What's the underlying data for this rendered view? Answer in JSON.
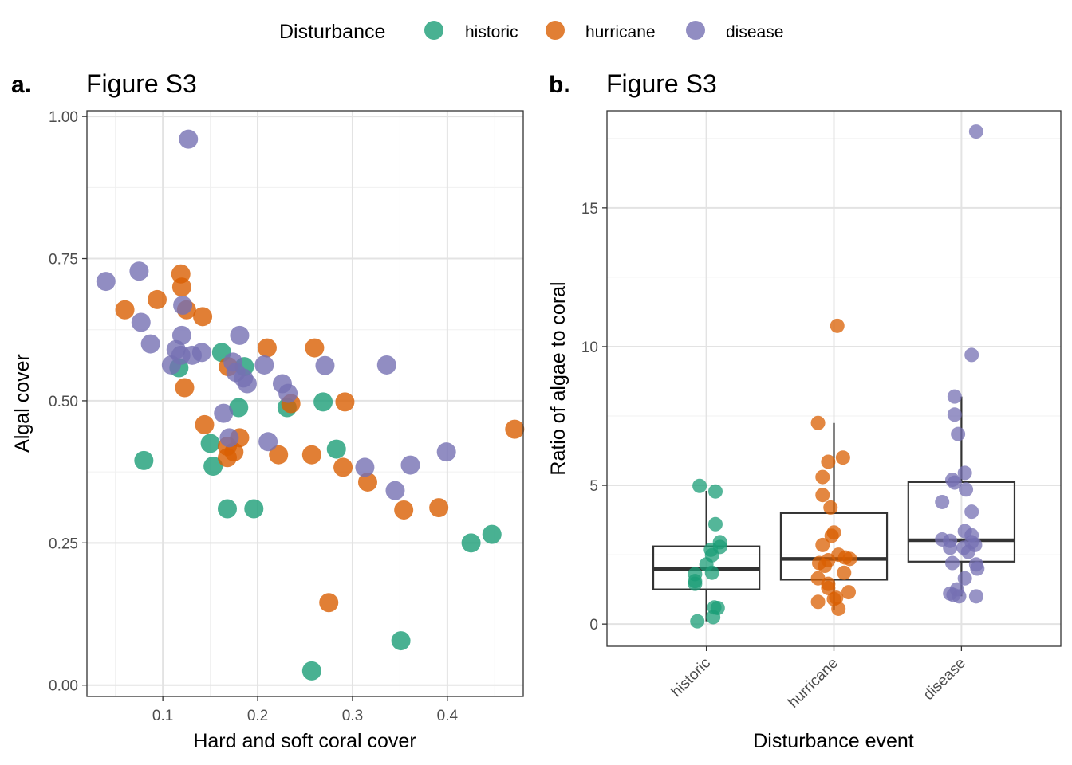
{
  "legend": {
    "title": "Disturbance",
    "items": [
      {
        "label": "historic",
        "color": "#1b9e77"
      },
      {
        "label": "hurricane",
        "color": "#d95f02"
      },
      {
        "label": "disease",
        "color": "#7570b3"
      }
    ]
  },
  "panels": {
    "a": {
      "tag": "a.",
      "title": "Figure S3"
    },
    "b": {
      "tag": "b.",
      "title": "Figure S3"
    }
  },
  "chart_data": [
    {
      "type": "scatter",
      "tag": "a.",
      "title": "Figure S3",
      "xlabel": "Hard and soft coral cover",
      "ylabel": "Algal cover",
      "xlim": [
        0.02,
        0.48
      ],
      "ylim": [
        -0.02,
        1.01
      ],
      "xticks": [
        0.1,
        0.2,
        0.3,
        0.4
      ],
      "xtick_labels": [
        "0.1",
        "0.2",
        "0.3",
        "0.4"
      ],
      "yticks": [
        0.0,
        0.25,
        0.5,
        0.75,
        1.0
      ],
      "ytick_labels": [
        "0.00",
        "0.25",
        "0.50",
        "0.75",
        "1.00"
      ],
      "grid": true,
      "series": [
        {
          "name": "historic",
          "color": "#1b9e77",
          "points": [
            [
              0.08,
              0.395
            ],
            [
              0.117,
              0.558
            ],
            [
              0.15,
              0.425
            ],
            [
              0.153,
              0.385
            ],
            [
              0.162,
              0.585
            ],
            [
              0.168,
              0.31
            ],
            [
              0.18,
              0.488
            ],
            [
              0.186,
              0.56
            ],
            [
              0.196,
              0.31
            ],
            [
              0.231,
              0.488
            ],
            [
              0.269,
              0.498
            ],
            [
              0.283,
              0.415
            ],
            [
              0.257,
              0.025
            ],
            [
              0.351,
              0.078
            ],
            [
              0.425,
              0.25
            ],
            [
              0.447,
              0.265
            ]
          ]
        },
        {
          "name": "hurricane",
          "color": "#d95f02",
          "points": [
            [
              0.06,
              0.66
            ],
            [
              0.094,
              0.678
            ],
            [
              0.119,
              0.723
            ],
            [
              0.12,
              0.7
            ],
            [
              0.125,
              0.66
            ],
            [
              0.142,
              0.648
            ],
            [
              0.123,
              0.523
            ],
            [
              0.144,
              0.458
            ],
            [
              0.169,
              0.56
            ],
            [
              0.168,
              0.42
            ],
            [
              0.168,
              0.4
            ],
            [
              0.175,
              0.41
            ],
            [
              0.181,
              0.435
            ],
            [
              0.21,
              0.593
            ],
            [
              0.222,
              0.405
            ],
            [
              0.235,
              0.495
            ],
            [
              0.257,
              0.405
            ],
            [
              0.26,
              0.593
            ],
            [
              0.29,
              0.383
            ],
            [
              0.292,
              0.498
            ],
            [
              0.316,
              0.357
            ],
            [
              0.354,
              0.308
            ],
            [
              0.391,
              0.312
            ],
            [
              0.471,
              0.45
            ],
            [
              0.275,
              0.145
            ]
          ]
        },
        {
          "name": "disease",
          "color": "#7570b3",
          "points": [
            [
              0.04,
              0.71
            ],
            [
              0.075,
              0.728
            ],
            [
              0.077,
              0.638
            ],
            [
              0.087,
              0.6
            ],
            [
              0.109,
              0.563
            ],
            [
              0.114,
              0.59
            ],
            [
              0.119,
              0.58
            ],
            [
              0.12,
              0.615
            ],
            [
              0.121,
              0.668
            ],
            [
              0.131,
              0.58
            ],
            [
              0.141,
              0.585
            ],
            [
              0.127,
              0.96
            ],
            [
              0.164,
              0.478
            ],
            [
              0.17,
              0.435
            ],
            [
              0.174,
              0.568
            ],
            [
              0.177,
              0.55
            ],
            [
              0.181,
              0.615
            ],
            [
              0.185,
              0.54
            ],
            [
              0.189,
              0.53
            ],
            [
              0.207,
              0.563
            ],
            [
              0.211,
              0.428
            ],
            [
              0.226,
              0.53
            ],
            [
              0.232,
              0.513
            ],
            [
              0.271,
              0.562
            ],
            [
              0.313,
              0.383
            ],
            [
              0.336,
              0.563
            ],
            [
              0.345,
              0.342
            ],
            [
              0.361,
              0.387
            ],
            [
              0.399,
              0.41
            ]
          ]
        }
      ]
    },
    {
      "type": "box",
      "tag": "b.",
      "title": "Figure S3",
      "xlabel": "Disturbance event",
      "ylabel": "Ratio of algae to coral",
      "categories": [
        "historic",
        "hurricane",
        "disease"
      ],
      "ylim": [
        -0.8,
        18.5
      ],
      "yticks": [
        0,
        5,
        10,
        15
      ],
      "ytick_labels": [
        "0",
        "5",
        "10",
        "15"
      ],
      "grid": true,
      "boxes": [
        {
          "name": "historic",
          "q1": 1.25,
          "median": 1.98,
          "q3": 2.8,
          "whisker_low": 0.1,
          "whisker_high": 4.8
        },
        {
          "name": "hurricane",
          "q1": 1.6,
          "median": 2.35,
          "q3": 4.0,
          "whisker_low": 0.5,
          "whisker_high": 7.25
        },
        {
          "name": "disease",
          "q1": 2.25,
          "median": 3.02,
          "q3": 5.12,
          "whisker_low": 1.0,
          "whisker_high": 8.2
        }
      ],
      "series": [
        {
          "name": "historic",
          "color": "#1b9e77",
          "points": [
            [
              -0.06,
              4.98
            ],
            [
              0.08,
              4.78
            ],
            [
              0.08,
              3.6
            ],
            [
              0.12,
              2.95
            ],
            [
              0.12,
              2.78
            ],
            [
              0.04,
              2.68
            ],
            [
              0.0,
              2.15
            ],
            [
              0.05,
              2.48
            ],
            [
              -0.1,
              1.8
            ],
            [
              0.05,
              1.85
            ],
            [
              -0.1,
              1.55
            ],
            [
              -0.1,
              1.45
            ],
            [
              0.07,
              0.6
            ],
            [
              0.1,
              0.58
            ],
            [
              0.06,
              0.25
            ],
            [
              -0.08,
              0.1
            ]
          ]
        },
        {
          "name": "hurricane",
          "color": "#d95f02",
          "points": [
            [
              0.03,
              10.75
            ],
            [
              -0.14,
              7.25
            ],
            [
              0.08,
              6.0
            ],
            [
              -0.05,
              5.85
            ],
            [
              -0.1,
              5.3
            ],
            [
              -0.1,
              4.65
            ],
            [
              -0.03,
              4.2
            ],
            [
              0.0,
              3.3
            ],
            [
              -0.02,
              3.18
            ],
            [
              -0.1,
              2.85
            ],
            [
              0.04,
              2.5
            ],
            [
              0.1,
              2.4
            ],
            [
              0.14,
              2.35
            ],
            [
              -0.05,
              2.3
            ],
            [
              -0.13,
              2.2
            ],
            [
              -0.08,
              2.1
            ],
            [
              0.09,
              1.85
            ],
            [
              -0.14,
              1.65
            ],
            [
              -0.05,
              1.45
            ],
            [
              -0.05,
              1.3
            ],
            [
              0.13,
              1.15
            ],
            [
              0.02,
              0.95
            ],
            [
              -0.14,
              0.8
            ],
            [
              0.04,
              0.55
            ],
            [
              0.0,
              0.9
            ]
          ]
        },
        {
          "name": "disease",
          "color": "#7570b3",
          "points": [
            [
              0.13,
              17.75
            ],
            [
              0.09,
              9.7
            ],
            [
              -0.06,
              8.2
            ],
            [
              -0.06,
              7.55
            ],
            [
              -0.03,
              6.85
            ],
            [
              0.03,
              5.45
            ],
            [
              -0.08,
              5.2
            ],
            [
              -0.06,
              5.1
            ],
            [
              0.04,
              4.85
            ],
            [
              -0.17,
              4.4
            ],
            [
              0.09,
              4.05
            ],
            [
              0.03,
              3.35
            ],
            [
              0.09,
              3.2
            ],
            [
              -0.17,
              3.05
            ],
            [
              -0.1,
              3.0
            ],
            [
              0.09,
              2.95
            ],
            [
              0.12,
              2.85
            ],
            [
              0.02,
              2.75
            ],
            [
              -0.1,
              2.75
            ],
            [
              0.06,
              2.6
            ],
            [
              0.13,
              2.15
            ],
            [
              -0.08,
              2.2
            ],
            [
              0.14,
              2.0
            ],
            [
              0.03,
              1.65
            ],
            [
              -0.04,
              1.25
            ],
            [
              -0.1,
              1.1
            ],
            [
              -0.02,
              1.0
            ],
            [
              0.13,
              1.0
            ],
            [
              -0.07,
              1.05
            ]
          ]
        }
      ]
    }
  ]
}
